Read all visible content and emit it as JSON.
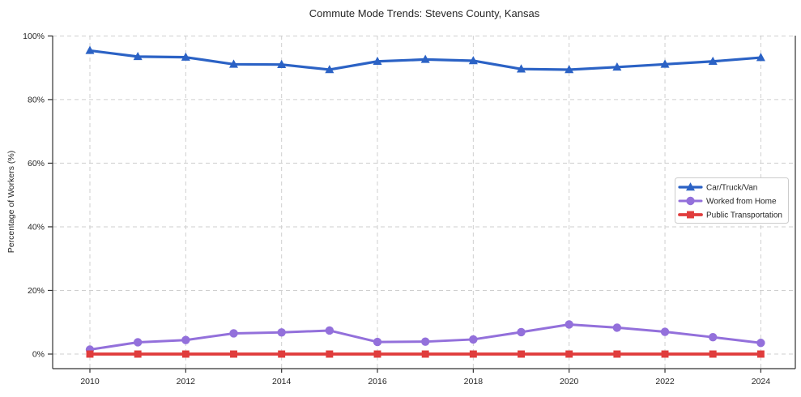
{
  "chart_data": {
    "type": "line",
    "title": "Commute Mode Trends: Stevens County, Kansas",
    "xlabel": "",
    "ylabel": "Percentage of Workers (%)",
    "x": [
      2010,
      2011,
      2012,
      2013,
      2014,
      2015,
      2016,
      2017,
      2018,
      2019,
      2020,
      2021,
      2022,
      2023,
      2024
    ],
    "xticks": [
      2010,
      2012,
      2014,
      2016,
      2018,
      2020,
      2022,
      2024
    ],
    "xticklabels": [
      "2010",
      "2012",
      "2014",
      "2016",
      "2018",
      "2020",
      "2022",
      "2024"
    ],
    "yticks": [
      0,
      20,
      40,
      60,
      80,
      100
    ],
    "yticklabels": [
      "0%",
      "20%",
      "40%",
      "60%",
      "80%",
      "100%"
    ],
    "ylim": [
      -4.6,
      100
    ],
    "grid": true,
    "grid_style": "dashed",
    "legend_position": "center-right",
    "series": [
      {
        "name": "Car/Truck/Van",
        "color": "#2b62c5",
        "marker": "triangle",
        "values": [
          95.4,
          93.5,
          93.3,
          91.1,
          91.0,
          89.4,
          92.0,
          92.6,
          92.2,
          89.6,
          89.4,
          90.2,
          91.1,
          92.0,
          93.2
        ]
      },
      {
        "name": "Worked from Home",
        "color": "#9370db",
        "marker": "circle",
        "values": [
          1.4,
          3.7,
          4.4,
          6.5,
          6.8,
          7.4,
          3.8,
          3.9,
          4.6,
          6.9,
          9.3,
          8.3,
          7.0,
          5.3,
          3.5
        ]
      },
      {
        "name": "Public Transportation",
        "color": "#e03c3c",
        "marker": "square",
        "values": [
          0.0,
          0.0,
          0.0,
          0.0,
          0.0,
          0.0,
          0.0,
          0.0,
          0.0,
          0.0,
          0.0,
          0.0,
          0.0,
          0.0,
          0.0
        ]
      }
    ]
  }
}
